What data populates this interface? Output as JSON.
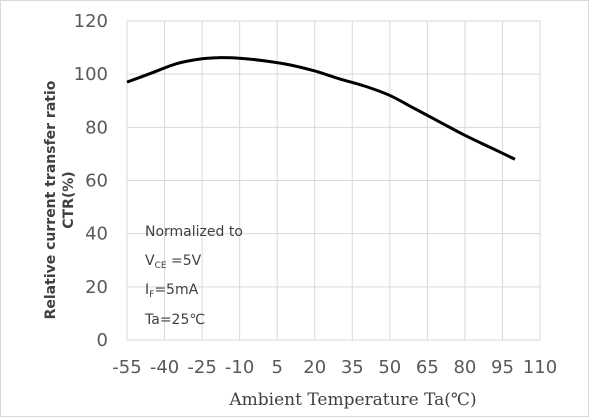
{
  "chart_data": {
    "type": "line",
    "xlabel": "Ambient Temperature Ta(℃)",
    "ylabel_lines": [
      "Relative current transfer ratio",
      "CTR(%)"
    ],
    "xlim": [
      -55,
      110
    ],
    "ylim": [
      0,
      120
    ],
    "x_ticks": [
      "-55",
      "-40",
      "-25",
      "-10",
      "5",
      "20",
      "35",
      "50",
      "65",
      "80",
      "95",
      "110"
    ],
    "y_ticks": [
      "0",
      "20",
      "40",
      "60",
      "80",
      "100",
      "120"
    ],
    "grid": true,
    "series": [
      {
        "x": [
          -55,
          -45,
          -35,
          -25,
          -18,
          -10,
          0,
          10,
          20,
          30,
          40,
          50,
          60,
          70,
          80,
          90,
          100
        ],
        "values": [
          97,
          100.5,
          104,
          105.8,
          106.2,
          106,
          105,
          103.5,
          101.2,
          98.2,
          95.5,
          92,
          87,
          82,
          77,
          72.5,
          68
        ]
      }
    ],
    "line_color": "#000000",
    "grid_color": "#d9d9d9",
    "annotation": {
      "line1": "Normalized to",
      "vce_main": "V",
      "vce_sub": "CE",
      "vce_rest": " =5V",
      "if_main": "I",
      "if_sub": "F",
      "if_rest": "=5mA",
      "ta": "Ta=25℃"
    }
  }
}
